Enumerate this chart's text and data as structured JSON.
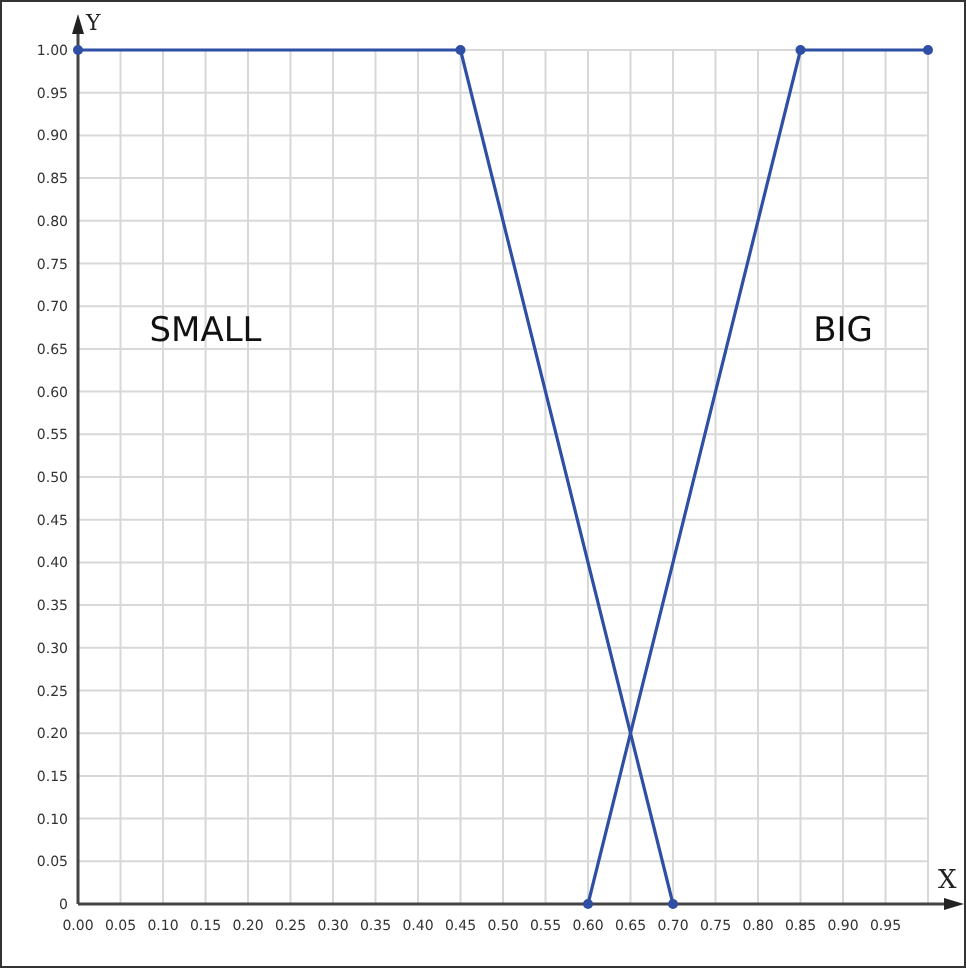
{
  "chart_data": {
    "type": "line",
    "xlabel": "X",
    "ylabel": "Y",
    "xlim": [
      0,
      1
    ],
    "ylim": [
      0,
      1
    ],
    "xticks": [
      {
        "value": 0,
        "label": "0.00"
      },
      {
        "value": 0.05,
        "label": "0.05"
      },
      {
        "value": 0.1,
        "label": "0.10"
      },
      {
        "value": 0.15,
        "label": "0.15"
      },
      {
        "value": 0.2,
        "label": "0.20"
      },
      {
        "value": 0.25,
        "label": "0.25"
      },
      {
        "value": 0.3,
        "label": "0.30"
      },
      {
        "value": 0.35,
        "label": "0.35"
      },
      {
        "value": 0.4,
        "label": "0.40"
      },
      {
        "value": 0.45,
        "label": "0.45"
      },
      {
        "value": 0.5,
        "label": "0.50"
      },
      {
        "value": 0.55,
        "label": "0.55"
      },
      {
        "value": 0.6,
        "label": "0.60"
      },
      {
        "value": 0.65,
        "label": "0.65"
      },
      {
        "value": 0.7,
        "label": "0.70"
      },
      {
        "value": 0.75,
        "label": "0.75"
      },
      {
        "value": 0.8,
        "label": "0.80"
      },
      {
        "value": 0.85,
        "label": "0.85"
      },
      {
        "value": 0.9,
        "label": "0.90"
      },
      {
        "value": 0.95,
        "label": "0.95"
      }
    ],
    "yticks": [
      0,
      {
        "value": 0.05,
        "label": "0.05"
      },
      {
        "value": 0.1,
        "label": "0.10"
      },
      {
        "value": 0.15,
        "label": "0.15"
      },
      {
        "value": 0.2,
        "label": "0.20"
      },
      {
        "value": 0.25,
        "label": "0.25"
      },
      {
        "value": 0.3,
        "label": "0.30"
      },
      {
        "value": 0.35,
        "label": "0.35"
      },
      {
        "value": 0.4,
        "label": "0.40"
      },
      {
        "value": 0.45,
        "label": "0.45"
      },
      {
        "value": 0.5,
        "label": "0.50"
      },
      {
        "value": 0.55,
        "label": "0.55"
      },
      {
        "value": 0.6,
        "label": "0.60"
      },
      {
        "value": 0.65,
        "label": "0.65"
      },
      {
        "value": 0.7,
        "label": "0.70"
      },
      {
        "value": 0.75,
        "label": "0.75"
      },
      {
        "value": 0.8,
        "label": "0.80"
      },
      {
        "value": 0.85,
        "label": "0.85"
      },
      {
        "value": 0.9,
        "label": "0.90"
      },
      {
        "value": 0.95,
        "label": "0.95"
      },
      {
        "value": 1,
        "label": "1.00"
      }
    ],
    "grid": true,
    "marker": "circle",
    "annotations": [
      "SMALL",
      "BIG"
    ],
    "series": [
      {
        "color": "#2e4fa3",
        "x": [
          0,
          0.45,
          0.7
        ],
        "values": [
          1,
          1,
          0
        ]
      },
      {
        "color": "#2e4fa3",
        "x": [
          0.6,
          0.85,
          1
        ],
        "values": [
          0,
          1,
          1
        ]
      }
    ]
  }
}
